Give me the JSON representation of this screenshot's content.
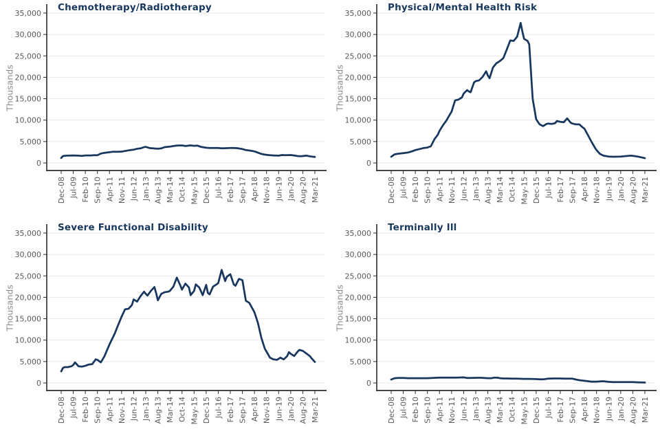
{
  "style": {
    "background": "#FFFFFF",
    "line_color": "#17375E",
    "title_color": "#17375E",
    "grid_color": "#E8E8E8",
    "axis_color": "#2B2B2B",
    "tick_label_color": "#595959",
    "unit_label_color": "#8C8C8C"
  },
  "axis_shared": {
    "y_step": 5000,
    "x_months_per_tick": 7,
    "x_total_months": 147
  },
  "chart_data": [
    {
      "type": "line",
      "title": "Chemotherapy/Radiotherapy",
      "ylabel": "Thousands",
      "ylim": [
        0,
        35000
      ],
      "y_tick_labels": [
        "0",
        "5,000",
        "10,000",
        "15,000",
        "20,000",
        "25,000",
        "30,000",
        "35,000"
      ],
      "x_tick_labels": [
        "Dec-08",
        "Jul-09",
        "Feb-10",
        "Sep-10",
        "Apr-11",
        "Nov-11",
        "Jun-12",
        "Jan-13",
        "Aug-13",
        "Mar-14",
        "Oct-14",
        "May-15",
        "Dec-15",
        "Jul-16",
        "Feb-17",
        "Sep-17",
        "Apr-18",
        "Nov-18",
        "Jun-19",
        "Jan-20",
        "Aug-20",
        "Mar-21"
      ],
      "x_unit": "months since Dec-08",
      "y_unit": "thousands",
      "points": [
        [
          0,
          1150
        ],
        [
          1,
          1600
        ],
        [
          3,
          1700
        ],
        [
          7,
          1750
        ],
        [
          10,
          1700
        ],
        [
          12,
          1650
        ],
        [
          14,
          1750
        ],
        [
          17,
          1750
        ],
        [
          19,
          1800
        ],
        [
          21,
          1800
        ],
        [
          23,
          2200
        ],
        [
          25,
          2350
        ],
        [
          28,
          2500
        ],
        [
          30,
          2600
        ],
        [
          33,
          2600
        ],
        [
          35,
          2650
        ],
        [
          38,
          2850
        ],
        [
          40,
          3000
        ],
        [
          42,
          3100
        ],
        [
          44,
          3300
        ],
        [
          46,
          3400
        ],
        [
          48,
          3700
        ],
        [
          49,
          3750
        ],
        [
          51,
          3500
        ],
        [
          53,
          3400
        ],
        [
          56,
          3300
        ],
        [
          58,
          3400
        ],
        [
          60,
          3700
        ],
        [
          63,
          3800
        ],
        [
          65,
          3950
        ],
        [
          67,
          4050
        ],
        [
          70,
          4100
        ],
        [
          72,
          3950
        ],
        [
          74,
          4050
        ],
        [
          75,
          4100
        ],
        [
          77,
          4000
        ],
        [
          79,
          4050
        ],
        [
          81,
          3750
        ],
        [
          84,
          3550
        ],
        [
          86,
          3500
        ],
        [
          88,
          3500
        ],
        [
          91,
          3500
        ],
        [
          93,
          3400
        ],
        [
          96,
          3450
        ],
        [
          98,
          3500
        ],
        [
          100,
          3500
        ],
        [
          102,
          3450
        ],
        [
          105,
          3250
        ],
        [
          107,
          3000
        ],
        [
          109,
          2900
        ],
        [
          112,
          2700
        ],
        [
          114,
          2400
        ],
        [
          116,
          2100
        ],
        [
          118,
          1950
        ],
        [
          119,
          1900
        ],
        [
          121,
          1800
        ],
        [
          123,
          1750
        ],
        [
          126,
          1700
        ],
        [
          128,
          1850
        ],
        [
          130,
          1800
        ],
        [
          133,
          1850
        ],
        [
          135,
          1750
        ],
        [
          137,
          1600
        ],
        [
          139,
          1550
        ],
        [
          140,
          1600
        ],
        [
          142,
          1700
        ],
        [
          144,
          1550
        ],
        [
          145,
          1500
        ],
        [
          147,
          1400
        ]
      ]
    },
    {
      "type": "line",
      "title": "Physical/Mental Health Risk",
      "ylabel": "Thousands",
      "ylim": [
        0,
        35000
      ],
      "y_tick_labels": [
        "0",
        "5,000",
        "10,000",
        "15,000",
        "20,000",
        "25,000",
        "30,000",
        "35,000"
      ],
      "x_tick_labels": [
        "Dec-08",
        "Jul-09",
        "Feb-10",
        "Sep-10",
        "Apr-11",
        "Nov-11",
        "Jun-12",
        "Jan-13",
        "Aug-13",
        "Mar-14",
        "Oct-14",
        "May-15",
        "Dec-15",
        "Jul-16",
        "Feb-17",
        "Sep-17",
        "Apr-18",
        "Nov-18",
        "Jun-19",
        "Jan-20",
        "Aug-20",
        "Mar-21"
      ],
      "x_unit": "months since Dec-08",
      "y_unit": "thousands",
      "points": [
        [
          0,
          1450
        ],
        [
          2,
          2000
        ],
        [
          4,
          2150
        ],
        [
          7,
          2300
        ],
        [
          10,
          2450
        ],
        [
          12,
          2700
        ],
        [
          14,
          3000
        ],
        [
          17,
          3300
        ],
        [
          19,
          3500
        ],
        [
          21,
          3600
        ],
        [
          23,
          3900
        ],
        [
          25,
          5500
        ],
        [
          27,
          6600
        ],
        [
          28,
          7500
        ],
        [
          30,
          8800
        ],
        [
          32,
          9900
        ],
        [
          34,
          11300
        ],
        [
          35,
          12000
        ],
        [
          37,
          14600
        ],
        [
          39,
          14800
        ],
        [
          41,
          15300
        ],
        [
          42,
          16200
        ],
        [
          44,
          17000
        ],
        [
          45,
          16700
        ],
        [
          46,
          16500
        ],
        [
          48,
          18800
        ],
        [
          49,
          19100
        ],
        [
          51,
          19300
        ],
        [
          53,
          20100
        ],
        [
          55,
          21400
        ],
        [
          56,
          20400
        ],
        [
          57,
          19800
        ],
        [
          59,
          22300
        ],
        [
          61,
          23300
        ],
        [
          63,
          23800
        ],
        [
          65,
          24500
        ],
        [
          67,
          26500
        ],
        [
          69,
          28600
        ],
        [
          71,
          28500
        ],
        [
          73,
          29500
        ],
        [
          75,
          32700
        ],
        [
          76,
          30700
        ],
        [
          77,
          29000
        ],
        [
          79,
          28500
        ],
        [
          80,
          27700
        ],
        [
          82,
          15000
        ],
        [
          84,
          10200
        ],
        [
          86,
          9000
        ],
        [
          88,
          8600
        ],
        [
          90,
          9100
        ],
        [
          91,
          9200
        ],
        [
          93,
          9100
        ],
        [
          95,
          9300
        ],
        [
          96,
          9800
        ],
        [
          98,
          9600
        ],
        [
          100,
          9500
        ],
        [
          102,
          10400
        ],
        [
          104,
          9400
        ],
        [
          105,
          9200
        ],
        [
          107,
          9000
        ],
        [
          109,
          9000
        ],
        [
          111,
          8300
        ],
        [
          112,
          8000
        ],
        [
          114,
          6500
        ],
        [
          116,
          5000
        ],
        [
          118,
          3600
        ],
        [
          119,
          3000
        ],
        [
          121,
          2100
        ],
        [
          123,
          1700
        ],
        [
          126,
          1500
        ],
        [
          129,
          1450
        ],
        [
          133,
          1500
        ],
        [
          136,
          1600
        ],
        [
          139,
          1700
        ],
        [
          141,
          1600
        ],
        [
          144,
          1400
        ],
        [
          147,
          1100
        ]
      ]
    },
    {
      "type": "line",
      "title": "Severe Functional Disability",
      "ylabel": "Thousands",
      "ylim": [
        0,
        35000
      ],
      "y_tick_labels": [
        "0",
        "5,000",
        "10,000",
        "15,000",
        "20,000",
        "25,000",
        "30,000",
        "35,000"
      ],
      "x_tick_labels": [
        "Dec-08",
        "Jul-09",
        "Feb-10",
        "Sep-10",
        "Apr-11",
        "Nov-11",
        "Jun-12",
        "Jan-13",
        "Aug-13",
        "Mar-14",
        "Oct-14",
        "May-15",
        "Dec-15",
        "Jul-16",
        "Feb-17",
        "Sep-17",
        "Apr-18",
        "Nov-18",
        "Jun-19",
        "Jan-20",
        "Aug-20",
        "Mar-21"
      ],
      "x_unit": "months since Dec-08",
      "y_unit": "thousands",
      "points": [
        [
          0,
          2700
        ],
        [
          1,
          3500
        ],
        [
          2,
          3700
        ],
        [
          4,
          3700
        ],
        [
          6,
          3900
        ],
        [
          7,
          4200
        ],
        [
          8,
          4800
        ],
        [
          10,
          3900
        ],
        [
          12,
          3800
        ],
        [
          14,
          4000
        ],
        [
          16,
          4300
        ],
        [
          18,
          4400
        ],
        [
          20,
          5500
        ],
        [
          21,
          5400
        ],
        [
          23,
          4800
        ],
        [
          25,
          6200
        ],
        [
          28,
          9000
        ],
        [
          31,
          11500
        ],
        [
          33,
          13500
        ],
        [
          35,
          15500
        ],
        [
          37,
          17200
        ],
        [
          39,
          17300
        ],
        [
          41,
          18200
        ],
        [
          42,
          19500
        ],
        [
          44,
          19000
        ],
        [
          46,
          20300
        ],
        [
          48,
          21300
        ],
        [
          49,
          20800
        ],
        [
          50,
          20400
        ],
        [
          52,
          21500
        ],
        [
          54,
          22400
        ],
        [
          55,
          21000
        ],
        [
          56,
          19300
        ],
        [
          58,
          20800
        ],
        [
          60,
          21200
        ],
        [
          62,
          21300
        ],
        [
          63,
          21500
        ],
        [
          65,
          22500
        ],
        [
          67,
          24600
        ],
        [
          69,
          22800
        ],
        [
          70,
          21800
        ],
        [
          72,
          23200
        ],
        [
          74,
          22300
        ],
        [
          75,
          20500
        ],
        [
          77,
          21500
        ],
        [
          78,
          23000
        ],
        [
          80,
          22300
        ],
        [
          82,
          20500
        ],
        [
          84,
          22900
        ],
        [
          85,
          21000
        ],
        [
          86,
          20700
        ],
        [
          88,
          22500
        ],
        [
          90,
          23000
        ],
        [
          91,
          23300
        ],
        [
          93,
          26400
        ],
        [
          95,
          23800
        ],
        [
          96,
          24800
        ],
        [
          98,
          25400
        ],
        [
          100,
          23000
        ],
        [
          101,
          22700
        ],
        [
          103,
          24300
        ],
        [
          105,
          24000
        ],
        [
          107,
          19200
        ],
        [
          109,
          18700
        ],
        [
          112,
          16500
        ],
        [
          114,
          14000
        ],
        [
          116,
          10500
        ],
        [
          118,
          8000
        ],
        [
          119,
          7300
        ],
        [
          121,
          5900
        ],
        [
          123,
          5500
        ],
        [
          125,
          5400
        ],
        [
          127,
          5900
        ],
        [
          129,
          5500
        ],
        [
          131,
          6300
        ],
        [
          132,
          7200
        ],
        [
          133,
          6800
        ],
        [
          135,
          6300
        ],
        [
          137,
          7300
        ],
        [
          138,
          7700
        ],
        [
          140,
          7500
        ],
        [
          142,
          6900
        ],
        [
          144,
          6300
        ],
        [
          145,
          5800
        ],
        [
          147,
          4900
        ]
      ]
    },
    {
      "type": "line",
      "title": "Terminally Ill",
      "ylabel": "Thousands",
      "ylim": [
        0,
        35000
      ],
      "y_tick_labels": [
        "0",
        "5,000",
        "10,000",
        "15,000",
        "20,000",
        "25,000",
        "30,000",
        "35,000"
      ],
      "x_tick_labels": [
        "Dec-08",
        "Jul-09",
        "Feb-10",
        "Sep-10",
        "Apr-11",
        "Nov-11",
        "Jun-12",
        "Jan-13",
        "Aug-13",
        "Mar-14",
        "Oct-14",
        "May-15",
        "Dec-15",
        "Jul-16",
        "Feb-17",
        "Sep-17",
        "Apr-18",
        "Nov-18",
        "Jun-19",
        "Jan-20",
        "Aug-20",
        "Mar-21"
      ],
      "x_unit": "months since Dec-08",
      "y_unit": "thousands",
      "points": [
        [
          0,
          800
        ],
        [
          2,
          1100
        ],
        [
          4,
          1150
        ],
        [
          7,
          1150
        ],
        [
          10,
          1100
        ],
        [
          14,
          1100
        ],
        [
          18,
          1100
        ],
        [
          21,
          1100
        ],
        [
          24,
          1150
        ],
        [
          28,
          1250
        ],
        [
          31,
          1250
        ],
        [
          35,
          1250
        ],
        [
          38,
          1250
        ],
        [
          42,
          1300
        ],
        [
          44,
          1150
        ],
        [
          46,
          1150
        ],
        [
          49,
          1200
        ],
        [
          52,
          1200
        ],
        [
          56,
          1100
        ],
        [
          58,
          1100
        ],
        [
          60,
          1250
        ],
        [
          62,
          1200
        ],
        [
          63,
          1100
        ],
        [
          65,
          1050
        ],
        [
          67,
          1050
        ],
        [
          70,
          1000
        ],
        [
          73,
          1000
        ],
        [
          77,
          950
        ],
        [
          80,
          950
        ],
        [
          84,
          900
        ],
        [
          86,
          850
        ],
        [
          88,
          850
        ],
        [
          91,
          1000
        ],
        [
          94,
          1050
        ],
        [
          96,
          1050
        ],
        [
          98,
          1050
        ],
        [
          100,
          1000
        ],
        [
          102,
          1000
        ],
        [
          105,
          1000
        ],
        [
          107,
          800
        ],
        [
          109,
          650
        ],
        [
          112,
          500
        ],
        [
          114,
          400
        ],
        [
          116,
          300
        ],
        [
          119,
          300
        ],
        [
          121,
          350
        ],
        [
          123,
          400
        ],
        [
          125,
          300
        ],
        [
          126,
          250
        ],
        [
          129,
          200
        ],
        [
          133,
          200
        ],
        [
          136,
          200
        ],
        [
          140,
          200
        ],
        [
          143,
          150
        ],
        [
          147,
          100
        ]
      ]
    }
  ]
}
